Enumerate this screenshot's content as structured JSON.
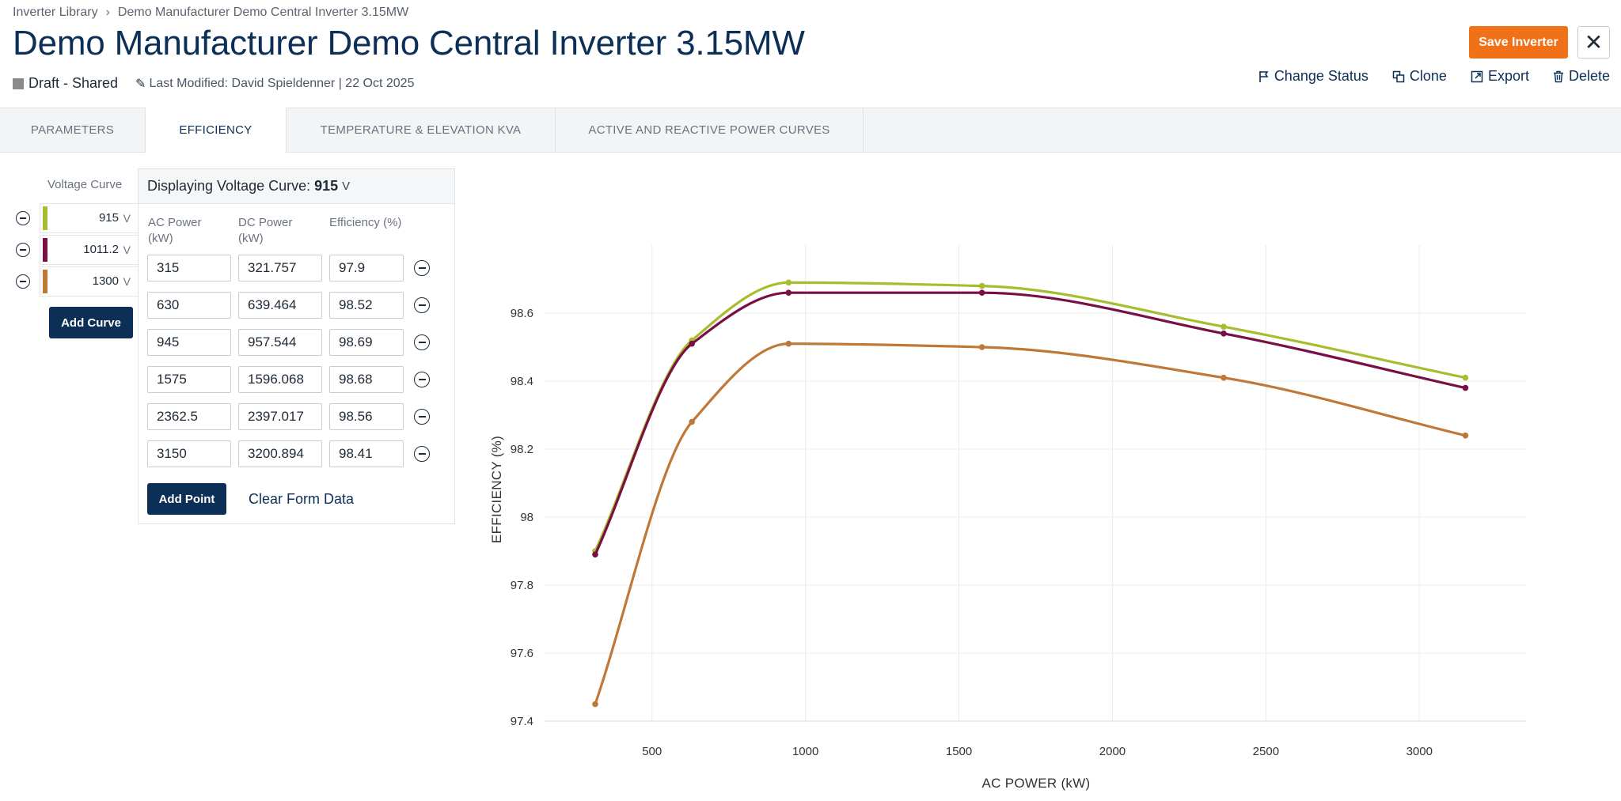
{
  "breadcrumb": {
    "root": "Inverter Library",
    "current": "Demo Manufacturer Demo Central Inverter 3.15MW"
  },
  "header": {
    "title": "Demo Manufacturer Demo Central Inverter 3.15MW",
    "status": "Draft - Shared",
    "last_modified": "Last Modified: David Spieldenner | 22 Oct 2025",
    "save_label": "Save Inverter",
    "close_label": "✕",
    "actions": [
      {
        "label": "Change Status",
        "icon": "flag-icon"
      },
      {
        "label": "Clone",
        "icon": "copy-icon"
      },
      {
        "label": "Export",
        "icon": "export-icon"
      },
      {
        "label": "Delete",
        "icon": "trash-icon"
      }
    ]
  },
  "tabs": [
    {
      "label": "PARAMETERS",
      "active": false
    },
    {
      "label": "EFFICIENCY",
      "active": true
    },
    {
      "label": "TEMPERATURE & ELEVATION KVA",
      "active": false
    },
    {
      "label": "ACTIVE AND REACTIVE POWER CURVES",
      "active": false
    }
  ],
  "voltage_curves": {
    "header": "Voltage Curve",
    "unit": "V",
    "items": [
      {
        "value": "915",
        "color": "#a7bd2e"
      },
      {
        "value": "1011.2",
        "color": "#7a0f45"
      },
      {
        "value": "1300",
        "color": "#c07838"
      }
    ],
    "add_label": "Add Curve"
  },
  "curve_panel": {
    "title": "Displaying Voltage Curve:",
    "selected": "915",
    "unit": "V",
    "col_ac": "AC Power (kW)",
    "col_dc": "DC Power (kW)",
    "col_eff": "Efficiency (%)",
    "rows": [
      {
        "ac": "315",
        "dc": "321.757",
        "eff": "97.9"
      },
      {
        "ac": "630",
        "dc": "639.464",
        "eff": "98.52"
      },
      {
        "ac": "945",
        "dc": "957.544",
        "eff": "98.69"
      },
      {
        "ac": "1575",
        "dc": "1596.068",
        "eff": "98.68"
      },
      {
        "ac": "2362.5",
        "dc": "2397.017",
        "eff": "98.56"
      },
      {
        "ac": "3150",
        "dc": "3200.894",
        "eff": "98.41"
      }
    ],
    "add_point_label": "Add Point",
    "clear_label": "Clear Form Data"
  },
  "chart_data": {
    "type": "line",
    "xlabel": "AC POWER (kW)",
    "ylabel": "EFFICIENCY (%)",
    "xlim": [
      150,
      3350
    ],
    "ylim": [
      97.4,
      98.8
    ],
    "xticks": [
      500,
      1000,
      1500,
      2000,
      2500,
      3000
    ],
    "yticks": [
      97.4,
      97.6,
      97.8,
      98,
      98.2,
      98.4,
      98.6
    ],
    "ytick_labels": [
      "97.4",
      "97.6",
      "97.8",
      "98",
      "98.2",
      "98.4",
      "98.6"
    ],
    "grid": true,
    "series": [
      {
        "color": "#a7bd2e",
        "x": [
          315,
          630,
          945,
          1575,
          2362.5,
          3150
        ],
        "y": [
          97.9,
          98.52,
          98.69,
          98.68,
          98.56,
          98.41
        ]
      },
      {
        "color": "#7a0f45",
        "x": [
          315,
          630,
          945,
          1575,
          2362.5,
          3150
        ],
        "y": [
          97.89,
          98.51,
          98.66,
          98.66,
          98.54,
          98.38
        ]
      },
      {
        "color": "#c07838",
        "x": [
          315,
          630,
          945,
          1575,
          2362.5,
          3150
        ],
        "y": [
          97.45,
          98.28,
          98.51,
          98.5,
          98.41,
          98.24
        ]
      }
    ]
  }
}
